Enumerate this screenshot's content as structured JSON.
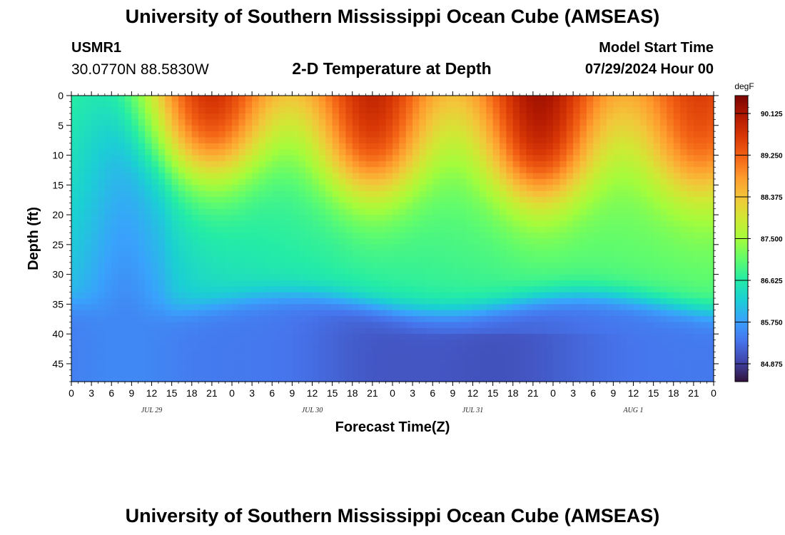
{
  "header": {
    "title": "University of Southern Mississippi Ocean Cube (AMSEAS)",
    "station_id": "USMR1",
    "coordinates": "30.0770N  88.5830W",
    "chart_title": "2-D Temperature at Depth",
    "model_start_label": "Model Start Time",
    "model_start_value": "07/29/2024 Hour 00"
  },
  "footer": {
    "title": "University of Southern Mississippi Ocean Cube (AMSEAS)"
  },
  "colors": {
    "background": "#ffffff",
    "colormap": [
      "#30123b",
      "#4145ab",
      "#4675ed",
      "#39a2fc",
      "#1bcfd4",
      "#24eca6",
      "#61fc6c",
      "#a4fc3b",
      "#d1e834",
      "#f3c63a",
      "#fe9b2d",
      "#f36315",
      "#d93806",
      "#b11901",
      "#7a0403"
    ]
  },
  "chart_data": {
    "type": "heatmap",
    "title": "2-D Temperature at Depth",
    "xlabel": "Forecast Time(Z)",
    "ylabel": "Depth (ft)",
    "x_range_hours": [
      0,
      96
    ],
    "x_tick_step_hours": 3,
    "x_tick_labels": [
      "0",
      "3",
      "6",
      "9",
      "12",
      "15",
      "18",
      "21",
      "0",
      "3",
      "6",
      "9",
      "12",
      "15",
      "18",
      "21",
      "0",
      "3",
      "6",
      "9",
      "12",
      "15",
      "18",
      "21",
      "0",
      "3",
      "6",
      "9",
      "12",
      "15",
      "18",
      "21",
      "0"
    ],
    "date_labels": [
      {
        "text": "JUL 29",
        "hour": 12
      },
      {
        "text": "JUL 30",
        "hour": 36
      },
      {
        "text": "JUL 31",
        "hour": 60
      },
      {
        "text": "AUG 1",
        "hour": 84
      }
    ],
    "y_range_ft": [
      0,
      48
    ],
    "y_ticks": [
      0,
      5,
      10,
      15,
      20,
      25,
      30,
      35,
      40,
      45
    ],
    "colorbar": {
      "unit": "degF",
      "min": 84.5,
      "max": 90.5,
      "ticks": [
        84.875,
        85.75,
        86.625,
        87.5,
        88.375,
        89.25,
        90.125
      ],
      "tick_labels": [
        "84.875",
        "85.750",
        "86.625",
        "87.500",
        "88.375",
        "89.250",
        "90.125"
      ]
    },
    "thermocline_depth_ft": 35,
    "deep_layer_mean_degF": 85.4,
    "surface_peaks": [
      {
        "hour": 21,
        "depth_extent_ft": 12,
        "peak_degF": 89.8
      },
      {
        "hour": 45,
        "depth_extent_ft": 15,
        "peak_degF": 89.9
      },
      {
        "hour": 70,
        "depth_extent_ft": 16,
        "peak_degF": 90.2
      },
      {
        "hour": 94,
        "depth_extent_ft": 15,
        "peak_degF": 89.6
      }
    ],
    "surface_minimum": {
      "hour": 8,
      "degF": 86.4
    }
  }
}
